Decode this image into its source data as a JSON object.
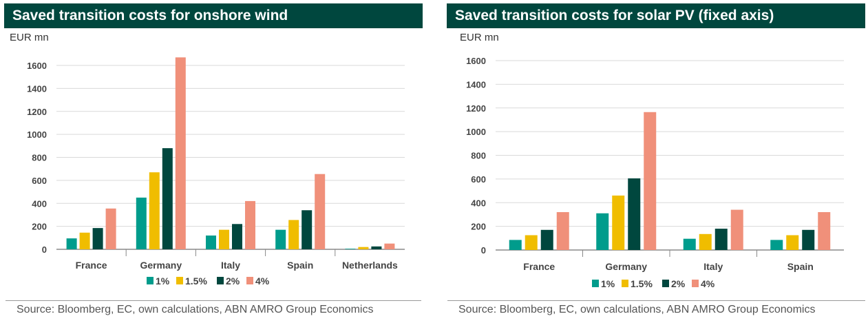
{
  "chart_data": [
    {
      "type": "bar",
      "title": "Saved transition costs for onshore wind",
      "unit": "EUR mn",
      "categories": [
        "France",
        "Germany",
        "Italy",
        "Spain",
        "Netherlands"
      ],
      "series": [
        {
          "name": "1%",
          "color": "#009c8c",
          "values": [
            95,
            450,
            120,
            170,
            5
          ]
        },
        {
          "name": "1.5%",
          "color": "#f0bd00",
          "values": [
            145,
            670,
            170,
            255,
            20
          ]
        },
        {
          "name": "2%",
          "color": "#00473e",
          "values": [
            185,
            880,
            220,
            340,
            25
          ]
        },
        {
          "name": "4%",
          "color": "#f0907a",
          "values": [
            355,
            1670,
            420,
            655,
            50
          ]
        }
      ],
      "yticks": [
        0,
        200,
        400,
        600,
        800,
        1000,
        1200,
        1400,
        1600
      ],
      "ylim": [
        0,
        1650
      ],
      "grid": true,
      "legend_position": "bottom",
      "source": "Source: Bloomberg, EC, own calculations, ABN AMRO Group Economics"
    },
    {
      "type": "bar",
      "title": "Saved transition costs for solar PV (fixed axis)",
      "unit": "EUR mn",
      "categories": [
        "France",
        "Germany",
        "Italy",
        "Spain"
      ],
      "series": [
        {
          "name": "1%",
          "color": "#009c8c",
          "values": [
            85,
            310,
            95,
            85
          ]
        },
        {
          "name": "1.5%",
          "color": "#f0bd00",
          "values": [
            125,
            460,
            135,
            125
          ]
        },
        {
          "name": "2%",
          "color": "#00473e",
          "values": [
            170,
            605,
            180,
            170
          ]
        },
        {
          "name": "4%",
          "color": "#f0907a",
          "values": [
            320,
            1165,
            340,
            320
          ]
        }
      ],
      "yticks": [
        0,
        200,
        400,
        600,
        800,
        1000,
        1200,
        1400,
        1600
      ],
      "ylim": [
        0,
        1600
      ],
      "grid": true,
      "legend_position": "bottom",
      "source": "Source: Bloomberg, EC, own calculations, ABN AMRO Group Economics"
    }
  ]
}
